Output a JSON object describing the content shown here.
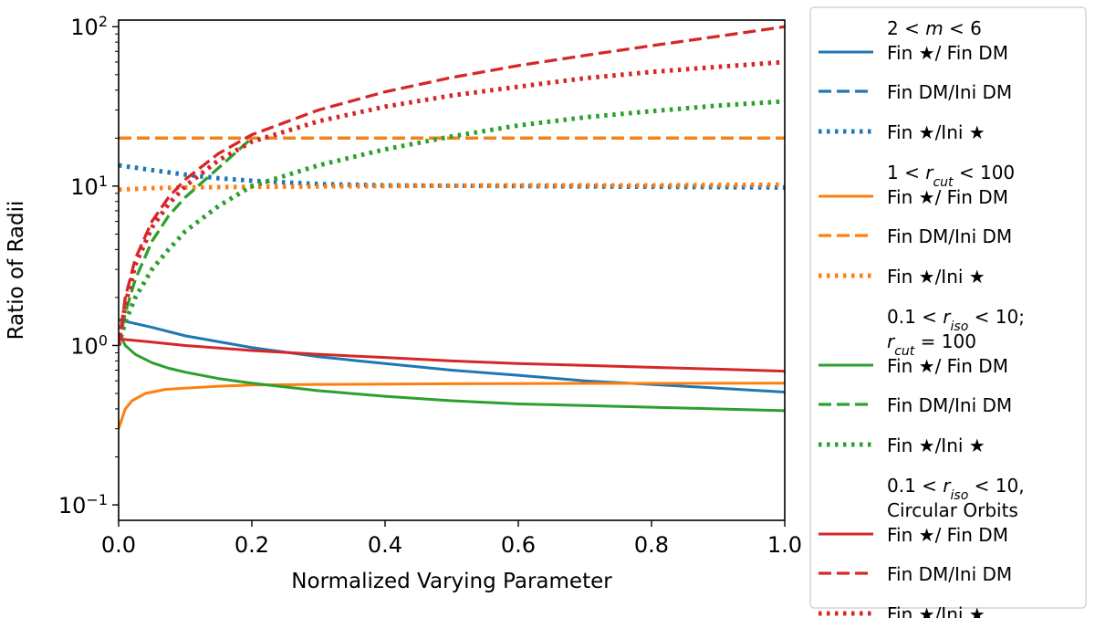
{
  "chart_data": {
    "type": "line",
    "title": "",
    "xlabel": "Normalized Varying Parameter",
    "ylabel": "Ratio of Radii",
    "xlim": [
      0.0,
      1.0
    ],
    "ylim": [
      0.08,
      110
    ],
    "yscale": "log",
    "grid": false,
    "legend_position": "outside-right",
    "x_ticks": [
      {
        "value": 0.0,
        "label": "0.0"
      },
      {
        "value": 0.2,
        "label": "0.2"
      },
      {
        "value": 0.4,
        "label": "0.4"
      },
      {
        "value": 0.6,
        "label": "0.6"
      },
      {
        "value": 0.8,
        "label": "0.8"
      },
      {
        "value": 1.0,
        "label": "1.0"
      }
    ],
    "y_ticks": [
      {
        "value": 0.1,
        "base": "10",
        "exp": "−1"
      },
      {
        "value": 1,
        "base": "10",
        "exp": "0"
      },
      {
        "value": 10,
        "base": "10",
        "exp": "1"
      },
      {
        "value": 100,
        "base": "10",
        "exp": "2"
      }
    ],
    "series": [
      {
        "color": "#1f77b4",
        "dash": "solid",
        "x": [
          0.0,
          0.05,
          0.1,
          0.2,
          0.3,
          0.4,
          0.5,
          0.6,
          0.7,
          0.8,
          0.9,
          1.0
        ],
        "y": [
          1.45,
          1.3,
          1.15,
          0.97,
          0.85,
          0.77,
          0.7,
          0.65,
          0.6,
          0.57,
          0.54,
          0.51
        ]
      },
      {
        "color": "#1f77b4",
        "dash": "dashed",
        "x": [
          0.0,
          0.2,
          0.4,
          0.6,
          0.8,
          1.0
        ],
        "y": [
          20,
          20,
          20,
          20,
          20,
          20
        ]
      },
      {
        "color": "#1f77b4",
        "dash": "dotted",
        "x": [
          0.0,
          0.05,
          0.1,
          0.15,
          0.2,
          0.3,
          0.4,
          0.6,
          0.8,
          1.0
        ],
        "y": [
          13.5,
          12.6,
          11.8,
          11.2,
          10.8,
          10.3,
          10.1,
          10.0,
          9.9,
          9.8
        ]
      },
      {
        "color": "#ff7f0e",
        "dash": "solid",
        "x": [
          0.0,
          0.01,
          0.02,
          0.04,
          0.07,
          0.1,
          0.15,
          0.2,
          0.3,
          0.5,
          0.7,
          1.0
        ],
        "y": [
          0.3,
          0.4,
          0.45,
          0.5,
          0.53,
          0.54,
          0.555,
          0.565,
          0.57,
          0.575,
          0.578,
          0.58
        ]
      },
      {
        "color": "#ff7f0e",
        "dash": "dashed",
        "x": [
          0.0,
          0.2,
          0.4,
          0.6,
          0.8,
          1.0
        ],
        "y": [
          20,
          20,
          20,
          20,
          20,
          20
        ]
      },
      {
        "color": "#ff7f0e",
        "dash": "dotted",
        "x": [
          0.0,
          0.05,
          0.1,
          0.2,
          0.4,
          0.6,
          0.8,
          1.0
        ],
        "y": [
          9.5,
          9.7,
          9.8,
          9.9,
          10.0,
          10.1,
          10.1,
          10.2
        ]
      },
      {
        "color": "#2ca02c",
        "dash": "solid",
        "x": [
          0.0,
          0.01,
          0.025,
          0.05,
          0.075,
          0.1,
          0.15,
          0.2,
          0.3,
          0.4,
          0.5,
          0.6,
          0.7,
          0.8,
          0.9,
          1.0
        ],
        "y": [
          1.2,
          1.0,
          0.88,
          0.78,
          0.72,
          0.68,
          0.62,
          0.58,
          0.52,
          0.48,
          0.45,
          0.43,
          0.42,
          0.41,
          0.4,
          0.39
        ]
      },
      {
        "color": "#2ca02c",
        "dash": "dashed",
        "x": [
          0.0,
          0.01,
          0.025,
          0.05,
          0.075,
          0.1,
          0.15,
          0.2
        ],
        "y": [
          1.0,
          1.6,
          2.6,
          4.5,
          6.5,
          8.5,
          13.0,
          20.0
        ]
      },
      {
        "color": "#2ca02c",
        "dash": "dotted",
        "x": [
          0.0,
          0.01,
          0.025,
          0.05,
          0.075,
          0.1,
          0.15,
          0.2,
          0.3,
          0.4,
          0.5,
          0.6,
          0.7,
          0.8,
          0.9,
          1.0
        ],
        "y": [
          1.0,
          1.4,
          2.0,
          3.0,
          4.0,
          5.2,
          7.5,
          10.0,
          13.5,
          17.0,
          20.5,
          24.0,
          27.0,
          29.5,
          32.0,
          34.0
        ]
      },
      {
        "color": "#d62728",
        "dash": "solid",
        "x": [
          0.0,
          0.05,
          0.1,
          0.2,
          0.3,
          0.4,
          0.5,
          0.6,
          0.7,
          0.8,
          0.9,
          1.0
        ],
        "y": [
          1.1,
          1.05,
          1.0,
          0.93,
          0.88,
          0.84,
          0.8,
          0.77,
          0.75,
          0.73,
          0.71,
          0.69
        ]
      },
      {
        "color": "#d62728",
        "dash": "dashed",
        "x": [
          0.0,
          0.01,
          0.025,
          0.05,
          0.075,
          0.1,
          0.15,
          0.2,
          0.3,
          0.4,
          0.5,
          0.6,
          0.7,
          0.8,
          0.9,
          1.0
        ],
        "y": [
          1.0,
          2.0,
          3.5,
          6.0,
          8.5,
          11.0,
          16.0,
          21.0,
          30.0,
          39.0,
          48.0,
          57.0,
          66.0,
          76.0,
          87.0,
          100.0
        ]
      },
      {
        "color": "#d62728",
        "dash": "dotted",
        "x": [
          0.0,
          0.01,
          0.025,
          0.05,
          0.075,
          0.1,
          0.15,
          0.2,
          0.3,
          0.4,
          0.5,
          0.6,
          0.7,
          0.8,
          0.9,
          1.0
        ],
        "y": [
          1.0,
          1.8,
          3.2,
          5.5,
          7.7,
          10.0,
          14.5,
          19.0,
          25.5,
          31.5,
          37.0,
          42.0,
          47.5,
          52.0,
          56.0,
          60.0
        ]
      }
    ],
    "legend": [
      {
        "series_index": 0,
        "lines": [
          [
            {
              "t": "2 < "
            },
            {
              "t": "m",
              "style": "italic"
            },
            {
              "t": " < 6"
            }
          ],
          [
            {
              "t": "Fin ★/ Fin DM"
            }
          ]
        ]
      },
      {
        "series_index": 1,
        "lines": [
          [
            {
              "t": "Fin DM/Ini DM"
            }
          ]
        ]
      },
      {
        "series_index": 2,
        "lines": [
          [
            {
              "t": "Fin ★/Ini ★"
            }
          ]
        ]
      },
      {
        "series_index": 3,
        "lines": [
          [
            {
              "t": "1 < "
            },
            {
              "t": "r",
              "style": "italic"
            },
            {
              "t": "cut",
              "style": "sub"
            },
            {
              "t": " < 100"
            }
          ],
          [
            {
              "t": "Fin ★/ Fin DM"
            }
          ]
        ]
      },
      {
        "series_index": 4,
        "lines": [
          [
            {
              "t": "Fin DM/Ini DM"
            }
          ]
        ]
      },
      {
        "series_index": 5,
        "lines": [
          [
            {
              "t": "Fin ★/Ini ★"
            }
          ]
        ]
      },
      {
        "series_index": 6,
        "lines": [
          [
            {
              "t": "0.1 < "
            },
            {
              "t": "r",
              "style": "italic"
            },
            {
              "t": "iso",
              "style": "sub"
            },
            {
              "t": " < 10;"
            }
          ],
          [
            {
              "t": "r",
              "style": "italic"
            },
            {
              "t": "cut",
              "style": "sub"
            },
            {
              "t": " = 100"
            }
          ],
          [
            {
              "t": "Fin ★/ Fin DM"
            }
          ]
        ]
      },
      {
        "series_index": 7,
        "lines": [
          [
            {
              "t": "Fin DM/Ini DM"
            }
          ]
        ]
      },
      {
        "series_index": 8,
        "lines": [
          [
            {
              "t": "Fin ★/Ini ★"
            }
          ]
        ]
      },
      {
        "series_index": 9,
        "lines": [
          [
            {
              "t": "0.1 < "
            },
            {
              "t": "r",
              "style": "italic"
            },
            {
              "t": "iso",
              "style": "sub"
            },
            {
              "t": " < 10,"
            }
          ],
          [
            {
              "t": "Circular Orbits"
            }
          ],
          [
            {
              "t": "Fin ★/ Fin DM"
            }
          ]
        ]
      },
      {
        "series_index": 10,
        "lines": [
          [
            {
              "t": "Fin DM/Ini DM"
            }
          ]
        ]
      },
      {
        "series_index": 11,
        "lines": [
          [
            {
              "t": "Fin ★/Ini ★"
            }
          ]
        ]
      }
    ]
  }
}
